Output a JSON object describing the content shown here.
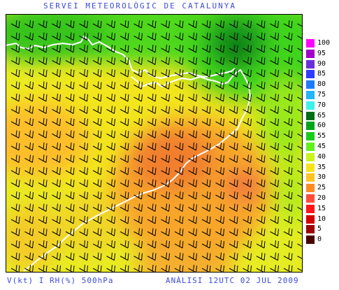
{
  "header": {
    "title": "SERVEI METEOROLÒGIC DE CATALUNYA"
  },
  "footer": {
    "variable": "V(kt) I RH(%) 500hPa",
    "analysis": "ANÀLISI 12UTC 02 JUL 2009"
  },
  "legend": {
    "items": [
      {
        "label": "100",
        "color": "#ff00ff"
      },
      {
        "label": "95",
        "color": "#a000c8"
      },
      {
        "label": "90",
        "color": "#6a30d8"
      },
      {
        "label": "85",
        "color": "#2f3cff"
      },
      {
        "label": "80",
        "color": "#1f7cff"
      },
      {
        "label": "75",
        "color": "#25b4ff"
      },
      {
        "label": "70",
        "color": "#3ff0ea"
      },
      {
        "label": "65",
        "color": "#006e14"
      },
      {
        "label": "60",
        "color": "#00a419"
      },
      {
        "label": "55",
        "color": "#19cc1b"
      },
      {
        "label": "45",
        "color": "#62f01f"
      },
      {
        "label": "40",
        "color": "#caf41e"
      },
      {
        "label": "35",
        "color": "#f7e31b"
      },
      {
        "label": "30",
        "color": "#ffc324"
      },
      {
        "label": "25",
        "color": "#ff8a25"
      },
      {
        "label": "20",
        "color": "#ff4d3a"
      },
      {
        "label": "15",
        "color": "#ff1717"
      },
      {
        "label": "10",
        "color": "#d40000"
      },
      {
        "label": "5",
        "color": "#9c0000"
      },
      {
        "label": "0",
        "color": "#4a0000"
      }
    ]
  }
}
